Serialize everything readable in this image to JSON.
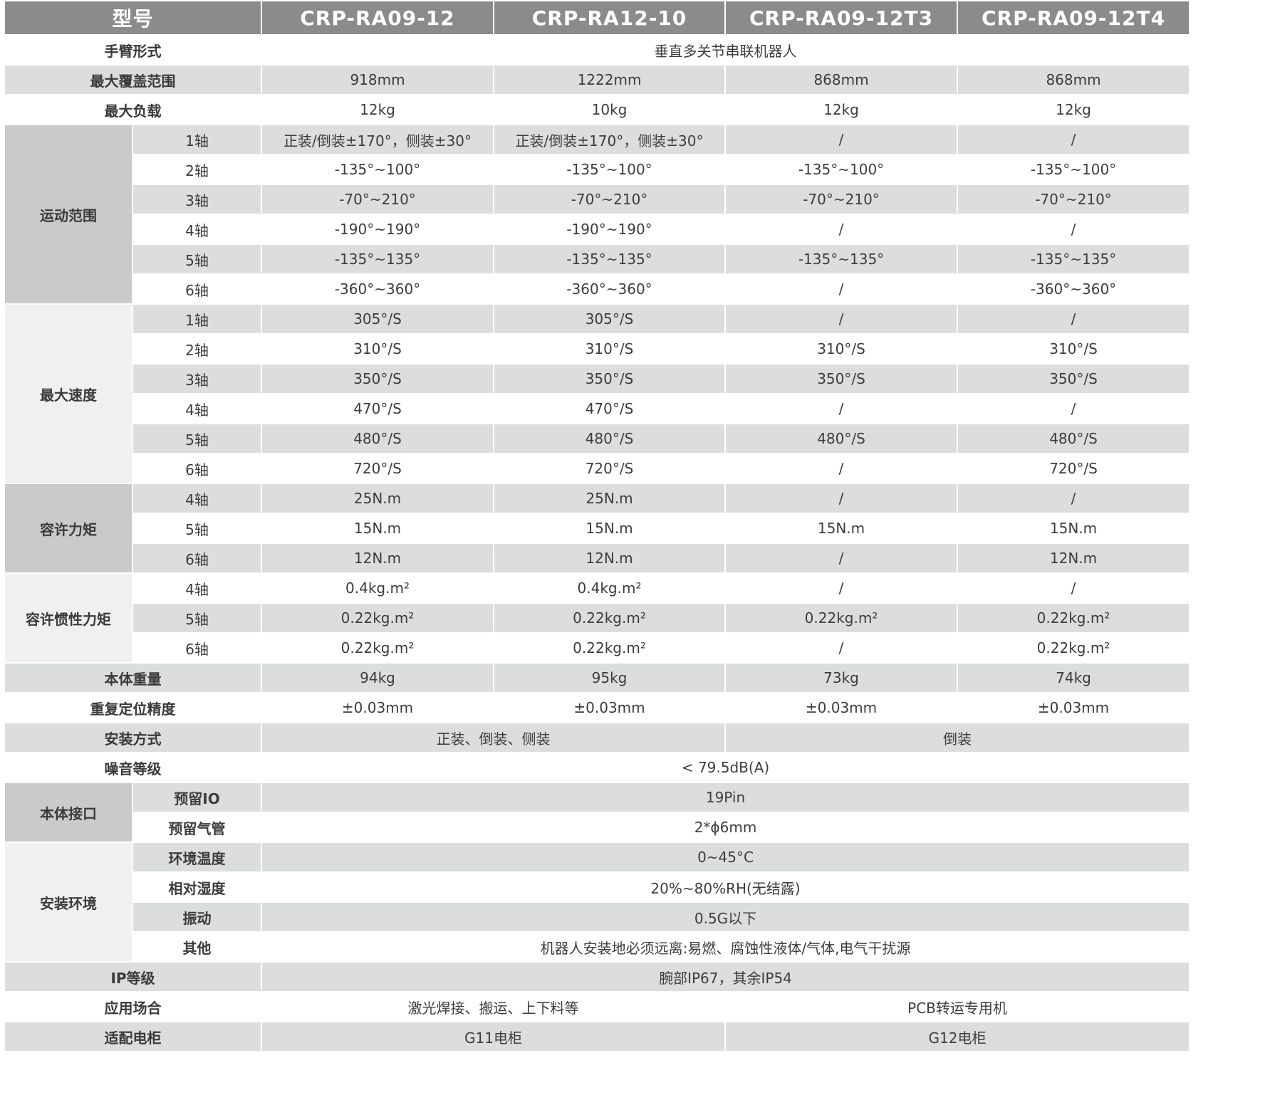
{
  "header": [
    "型号",
    "CRP-RA09-12",
    "CRP-RA12-10",
    "CRP-RA09-12T3",
    "CRP-RA09-12T4"
  ],
  "colors": {
    "header_bg": "#8b8b8b",
    "stripe": "#dcdddd",
    "group_dark": "#c9cacb",
    "group_light": "#f0f0f0"
  },
  "sections": [
    {
      "label": "手臂形式",
      "cells": [
        {
          "text": "垂直多关节串联机器人",
          "span": 4
        }
      ]
    },
    {
      "label": "最大覆盖范围",
      "cells": [
        {
          "text": "918mm"
        },
        {
          "text": "1222mm"
        },
        {
          "text": "868mm"
        },
        {
          "text": "868mm"
        }
      ]
    },
    {
      "label": "最大负载",
      "cells": [
        {
          "text": "12kg"
        },
        {
          "text": "10kg"
        },
        {
          "text": "12kg"
        },
        {
          "text": "12kg"
        }
      ]
    },
    {
      "group": "运动范围",
      "shade": "dark",
      "rows": [
        {
          "sub": "1轴",
          "cells": [
            {
              "text": "正装/倒装±170°，侧装±30°"
            },
            {
              "text": "正装/倒装±170°，侧装±30°"
            },
            {
              "text": "/"
            },
            {
              "text": "/"
            }
          ]
        },
        {
          "sub": "2轴",
          "cells": [
            {
              "text": "-135°~100°"
            },
            {
              "text": "-135°~100°"
            },
            {
              "text": "-135°~100°"
            },
            {
              "text": "-135°~100°"
            }
          ]
        },
        {
          "sub": "3轴",
          "cells": [
            {
              "text": "-70°~210°"
            },
            {
              "text": "-70°~210°"
            },
            {
              "text": "-70°~210°"
            },
            {
              "text": "-70°~210°"
            }
          ]
        },
        {
          "sub": "4轴",
          "cells": [
            {
              "text": "-190°~190°"
            },
            {
              "text": "-190°~190°"
            },
            {
              "text": "/"
            },
            {
              "text": "/"
            }
          ]
        },
        {
          "sub": "5轴",
          "cells": [
            {
              "text": "-135°~135°"
            },
            {
              "text": "-135°~135°"
            },
            {
              "text": "-135°~135°"
            },
            {
              "text": "-135°~135°"
            }
          ]
        },
        {
          "sub": "6轴",
          "cells": [
            {
              "text": "-360°~360°"
            },
            {
              "text": "-360°~360°"
            },
            {
              "text": "/"
            },
            {
              "text": "-360°~360°"
            }
          ]
        }
      ]
    },
    {
      "group": "最大速度",
      "shade": "light",
      "rows": [
        {
          "sub": "1轴",
          "cells": [
            {
              "text": "305°/S"
            },
            {
              "text": "305°/S"
            },
            {
              "text": "/"
            },
            {
              "text": "/"
            }
          ]
        },
        {
          "sub": "2轴",
          "cells": [
            {
              "text": "310°/S"
            },
            {
              "text": "310°/S"
            },
            {
              "text": "310°/S"
            },
            {
              "text": "310°/S"
            }
          ]
        },
        {
          "sub": "3轴",
          "cells": [
            {
              "text": "350°/S"
            },
            {
              "text": "350°/S"
            },
            {
              "text": "350°/S"
            },
            {
              "text": "350°/S"
            }
          ]
        },
        {
          "sub": "4轴",
          "cells": [
            {
              "text": "470°/S"
            },
            {
              "text": "470°/S"
            },
            {
              "text": "/"
            },
            {
              "text": "/"
            }
          ]
        },
        {
          "sub": "5轴",
          "cells": [
            {
              "text": "480°/S"
            },
            {
              "text": "480°/S"
            },
            {
              "text": "480°/S"
            },
            {
              "text": "480°/S"
            }
          ]
        },
        {
          "sub": "6轴",
          "cells": [
            {
              "text": "720°/S"
            },
            {
              "text": "720°/S"
            },
            {
              "text": "/"
            },
            {
              "text": "720°/S"
            }
          ]
        }
      ]
    },
    {
      "group": "容许力矩",
      "shade": "dark",
      "rows": [
        {
          "sub": "4轴",
          "cells": [
            {
              "text": "25N.m"
            },
            {
              "text": "25N.m"
            },
            {
              "text": "/"
            },
            {
              "text": "/"
            }
          ]
        },
        {
          "sub": "5轴",
          "cells": [
            {
              "text": "15N.m"
            },
            {
              "text": "15N.m"
            },
            {
              "text": "15N.m"
            },
            {
              "text": "15N.m"
            }
          ]
        },
        {
          "sub": "6轴",
          "cells": [
            {
              "text": "12N.m"
            },
            {
              "text": "12N.m"
            },
            {
              "text": "/"
            },
            {
              "text": "12N.m"
            }
          ]
        }
      ]
    },
    {
      "group": "容许惯性力矩",
      "shade": "light",
      "rows": [
        {
          "sub": "4轴",
          "cells": [
            {
              "text": "0.4kg.m²"
            },
            {
              "text": "0.4kg.m²"
            },
            {
              "text": "/"
            },
            {
              "text": "/"
            }
          ]
        },
        {
          "sub": "5轴",
          "cells": [
            {
              "text": "0.22kg.m²"
            },
            {
              "text": "0.22kg.m²"
            },
            {
              "text": "0.22kg.m²"
            },
            {
              "text": "0.22kg.m²"
            }
          ]
        },
        {
          "sub": "6轴",
          "cells": [
            {
              "text": "0.22kg.m²"
            },
            {
              "text": "0.22kg.m²"
            },
            {
              "text": "/"
            },
            {
              "text": "0.22kg.m²"
            }
          ]
        }
      ]
    },
    {
      "label": "本体重量",
      "cells": [
        {
          "text": "94kg"
        },
        {
          "text": "95kg"
        },
        {
          "text": "73kg"
        },
        {
          "text": "74kg"
        }
      ]
    },
    {
      "label": "重复定位精度",
      "cells": [
        {
          "text": "±0.03mm"
        },
        {
          "text": "±0.03mm"
        },
        {
          "text": "±0.03mm"
        },
        {
          "text": "±0.03mm"
        }
      ]
    },
    {
      "label": "安装方式",
      "cells": [
        {
          "text": "正装、倒装、侧装",
          "span": 2
        },
        {
          "text": "倒装",
          "span": 2
        }
      ]
    },
    {
      "label": "噪音等级",
      "cells": [
        {
          "text": "< 79.5dB(A)",
          "span": 4
        }
      ]
    },
    {
      "group": "本体接口",
      "shade": "dark",
      "boldsub": true,
      "rows": [
        {
          "sub": "预留IO",
          "cells": [
            {
              "text": "19Pin",
              "span": 4
            }
          ]
        },
        {
          "sub": "预留气管",
          "cells": [
            {
              "text": "2*ϕ6mm",
              "span": 4
            }
          ]
        }
      ]
    },
    {
      "group": "安装环境",
      "shade": "light",
      "boldsub": true,
      "rows": [
        {
          "sub": "环境温度",
          "cells": [
            {
              "text": "0~45°C",
              "span": 4
            }
          ]
        },
        {
          "sub": "相对湿度",
          "cells": [
            {
              "text": "20%~80%RH(无结露)",
              "span": 4
            }
          ]
        },
        {
          "sub": "振动",
          "cells": [
            {
              "text": "0.5G以下",
              "span": 4
            }
          ]
        },
        {
          "sub": "其他",
          "cells": [
            {
              "text": "机器人安装地必须远离:易燃、腐蚀性液体/气体,电气干扰源",
              "span": 4
            }
          ]
        }
      ]
    },
    {
      "label": "IP等级",
      "cells": [
        {
          "text": "腕部IP67，其余IP54",
          "span": 4
        }
      ]
    },
    {
      "label": "应用场合",
      "cells": [
        {
          "text": "激光焊接、搬运、上下料等",
          "span": 2
        },
        {
          "text": "PCB转运专用机",
          "span": 2
        }
      ]
    },
    {
      "label": "适配电柜",
      "cells": [
        {
          "text": "G11电柜",
          "span": 2
        },
        {
          "text": "G12电柜",
          "span": 2
        }
      ]
    }
  ]
}
